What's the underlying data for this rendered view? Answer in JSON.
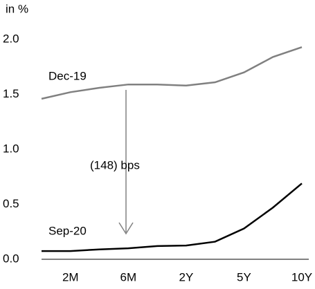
{
  "chart_data": {
    "type": "line",
    "y_label": "in %",
    "categories": [
      null,
      "2M",
      null,
      "6M",
      null,
      "2Y",
      null,
      "5Y",
      null,
      "10Y"
    ],
    "series": [
      {
        "name": "Dec-19",
        "color": "#808080",
        "values": [
          1.46,
          1.52,
          1.56,
          1.59,
          1.59,
          1.58,
          1.61,
          1.7,
          1.84,
          1.93
        ]
      },
      {
        "name": "Sep-20",
        "color": "#000000",
        "values": [
          0.075,
          0.075,
          0.09,
          0.1,
          0.12,
          0.125,
          0.16,
          0.28,
          0.47,
          0.69
        ]
      }
    ],
    "annotations": [
      "(148) bps"
    ],
    "ylim": [
      0,
      2
    ],
    "yticks": [
      {
        "value": 0,
        "label": "0.0"
      },
      {
        "value": 0.5,
        "label": "0.5"
      },
      {
        "value": 1,
        "label": "1.0"
      },
      {
        "value": 1.5,
        "label": "1.5"
      },
      {
        "value": 2,
        "label": "2.0"
      }
    ],
    "grid": false
  }
}
